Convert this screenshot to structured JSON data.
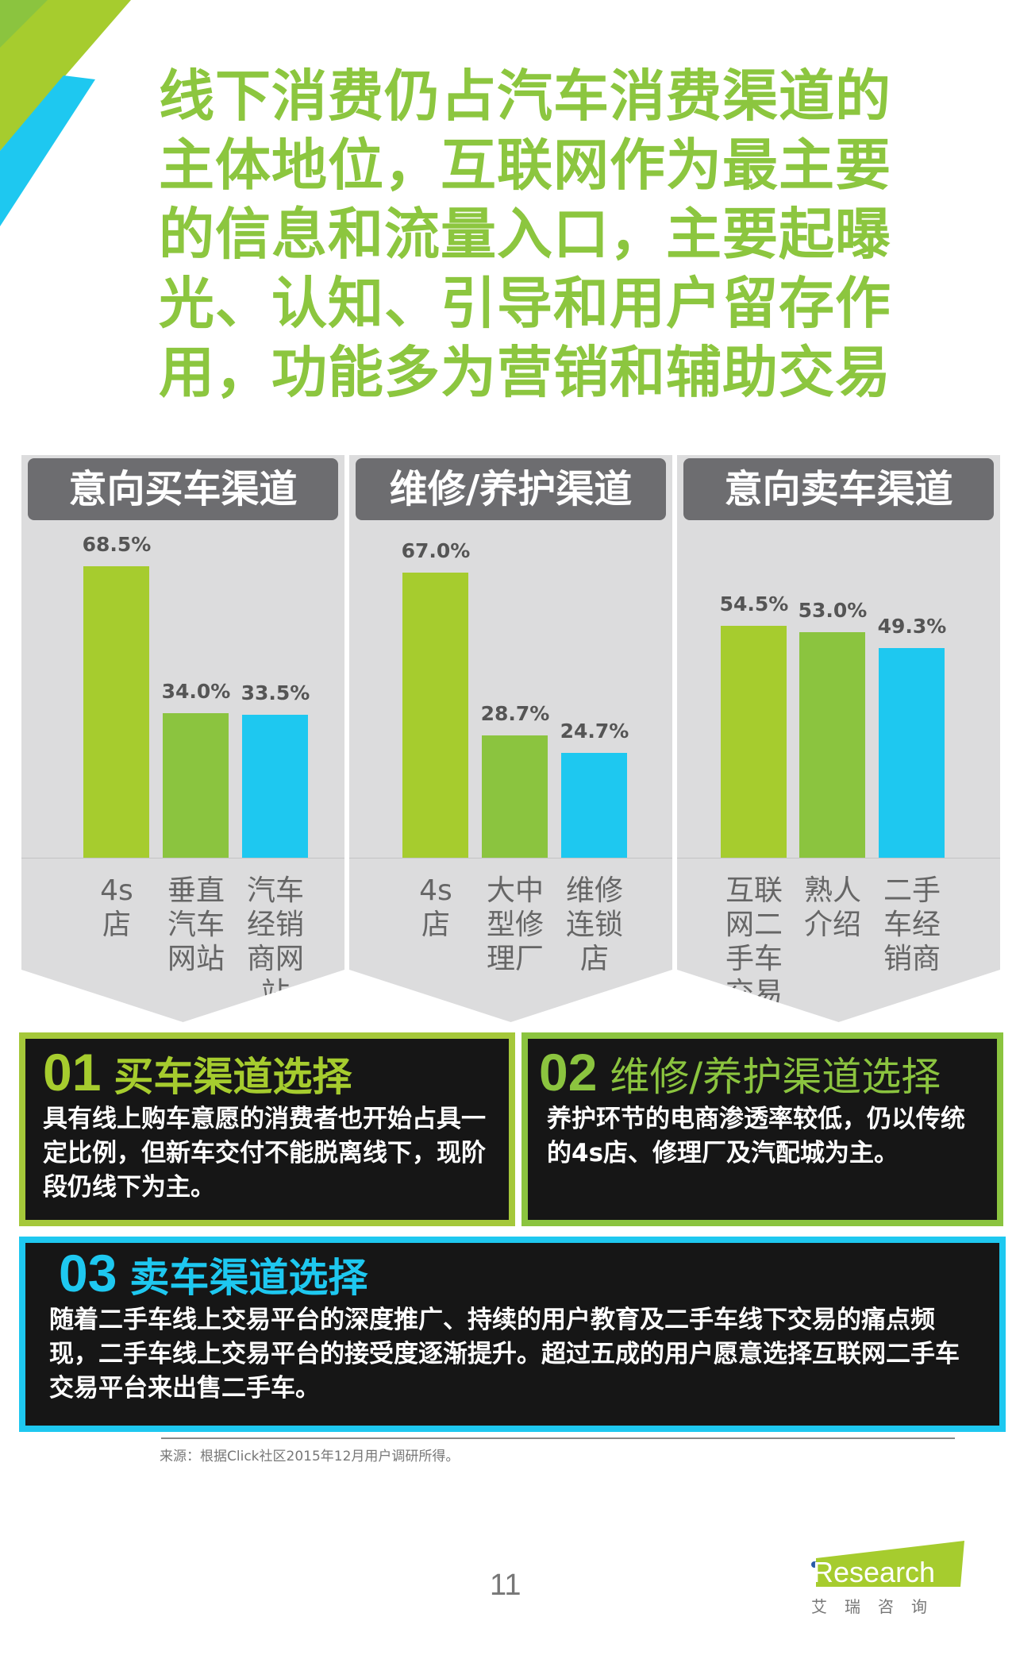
{
  "title_lines": [
    "线下消费仍占汽车消费渠道的",
    "主体地位，互联网作为最主要",
    "的信息和流量入口，主要起曝",
    "光、认知、引导和用户留存作",
    "用，功能多为营销和辅助交易"
  ],
  "colors": {
    "title": "#8cc63f",
    "bar_light_green": "#a6cc2e",
    "bar_green": "#8bc43f",
    "bar_blue": "#1ec8f0",
    "box_fill": "#161616"
  },
  "chart_data": [
    {
      "type": "bar",
      "title": "意向买车渠道",
      "categories": [
        "4s店",
        "垂直汽车网站",
        "汽车经销商网站"
      ],
      "values": [
        68.5,
        34.0,
        33.5
      ],
      "labels": [
        "68.5%",
        "34.0%",
        "33.5%"
      ],
      "ylim": [
        0,
        70
      ]
    },
    {
      "type": "bar",
      "title": "维修/养护渠道",
      "categories": [
        "4s店",
        "大中型修理厂",
        "维修连锁店"
      ],
      "values": [
        67.0,
        28.7,
        24.7
      ],
      "labels": [
        "67.0%",
        "28.7%",
        "24.7%"
      ],
      "ylim": [
        0,
        70
      ]
    },
    {
      "type": "bar",
      "title": "意向卖车渠道",
      "categories": [
        "互联网二手车交易平台",
        "熟人介绍",
        "二手车经销商"
      ],
      "values": [
        54.5,
        53.0,
        49.3
      ],
      "labels": [
        "54.5%",
        "53.0%",
        "49.3%"
      ],
      "ylim": [
        0,
        70
      ]
    }
  ],
  "boxes": [
    {
      "num": "01",
      "head": "买车渠道选择",
      "body": "具有线上购车意愿的消费者也开始占具一定比例，但新车交付不能脱离线下，现阶段仍线下为主。",
      "accent": "#a6cc2e",
      "border": "#a5c83a"
    },
    {
      "num": "02",
      "head": "维修/养护渠道选择",
      "body": "养护环节的电商渗透率较低，仍以传统的4s店、修理厂及汽配城为主。",
      "accent": "#8bc43f",
      "border": "#8bc43f"
    },
    {
      "num": "03",
      "head": "卖车渠道选择",
      "body": "随着二手车线上交易平台的深度推广、持续的用户教育及二手车线下交易的痛点频现，二手车线上交易平台的接受度逐渐提升。超过五成的用户愿意选择互联网二手车交易平台来出售二手车。",
      "accent": "#1ec8f0",
      "border": "#1ec8f0"
    }
  ],
  "source": "来源：根据Click社区2015年12月用户调研所得。",
  "page_number": "11",
  "logo": {
    "text": "iResearch",
    "sub": "艾 瑞 咨 询"
  }
}
